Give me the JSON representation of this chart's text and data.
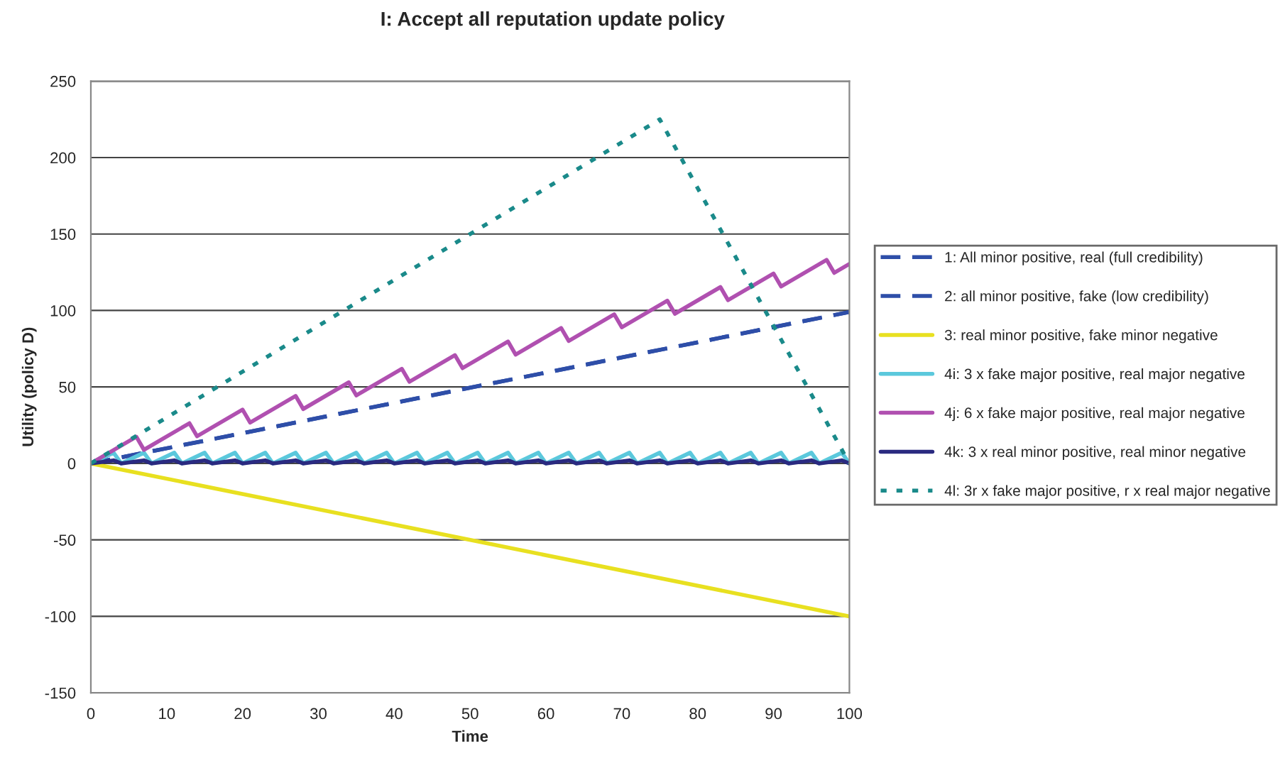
{
  "chart_data": {
    "type": "line",
    "title": "I: Accept all reputation update policy",
    "xlabel": "Time",
    "ylabel": "Utility (policy D)",
    "xlim": [
      0,
      100
    ],
    "xticks": [
      0,
      10,
      20,
      30,
      40,
      50,
      60,
      70,
      80,
      90,
      100
    ],
    "ylim": [
      -150,
      250
    ],
    "yticks": [
      -150,
      -100,
      -50,
      0,
      50,
      100,
      150,
      200,
      250
    ],
    "grid": "y",
    "legend": "right",
    "marker": "none",
    "series": [
      {
        "name": "1: All minor positive, real (full credibility)",
        "color": "#2e4ea8",
        "line_style": "dashed",
        "x": [
          0,
          100
        ],
        "values": [
          0,
          99
        ]
      },
      {
        "name": "2: all minor positive, fake (low credibility)",
        "color": "#2e4ea8",
        "line_style": "dashed",
        "x": [
          0,
          100
        ],
        "values": [
          0,
          99
        ]
      },
      {
        "name": "3: real minor positive, fake minor negative",
        "color": "#e8e020",
        "line_style": "solid",
        "x": [
          0,
          100
        ],
        "values": [
          0,
          -100
        ]
      },
      {
        "name": "4i: 3 x fake major positive, real major negative",
        "color": "#5bc8dc",
        "line_style": "solid",
        "x": [
          0,
          3,
          4,
          7,
          8,
          11,
          12,
          15,
          16,
          19,
          20,
          23,
          24,
          27,
          28,
          31,
          32,
          35,
          36,
          39,
          40,
          43,
          44,
          47,
          48,
          51,
          52,
          55,
          56,
          59,
          60,
          63,
          64,
          67,
          68,
          71,
          72,
          75,
          76,
          79,
          80,
          83,
          84,
          87,
          88,
          91,
          92,
          95,
          96,
          99,
          100
        ],
        "values": [
          0,
          7,
          0,
          7,
          0,
          7,
          0,
          7,
          0,
          7,
          0,
          7,
          0,
          7,
          0,
          7,
          0,
          7,
          0,
          7,
          0,
          7,
          0,
          7,
          0,
          7,
          0,
          7,
          0,
          7,
          0,
          7,
          0,
          7,
          0,
          7,
          0,
          7,
          0,
          7,
          0,
          7,
          0,
          7,
          0,
          7,
          0,
          7,
          0,
          7,
          0
        ]
      },
      {
        "name": "4j: 6 x fake major positive, real major negative",
        "color": "#b050b0",
        "line_style": "solid",
        "x": [
          0,
          6,
          7,
          13,
          14,
          20,
          21,
          27,
          28,
          34,
          35,
          41,
          42,
          48,
          49,
          55,
          56,
          62,
          63,
          69,
          70,
          76,
          77,
          83,
          84,
          90,
          91,
          97,
          98,
          100
        ],
        "values": [
          0,
          17.4,
          8.9,
          26.3,
          17.8,
          35.2,
          26.7,
          44.1,
          35.6,
          53,
          44.5,
          61.9,
          53.4,
          70.8,
          62.3,
          79.7,
          71.2,
          88.6,
          80.1,
          97.5,
          89,
          106.4,
          97.9,
          115.3,
          106.8,
          124.2,
          115.7,
          133.1,
          124.6,
          130.4
        ]
      },
      {
        "name": "4k: 3 x real minor positive, real minor negative",
        "color": "#2a2a80",
        "line_style": "solid",
        "x": [
          0,
          3,
          4,
          7,
          8,
          11,
          12,
          15,
          16,
          19,
          20,
          23,
          24,
          27,
          28,
          31,
          32,
          35,
          36,
          39,
          40,
          43,
          44,
          47,
          48,
          51,
          52,
          55,
          56,
          59,
          60,
          63,
          64,
          67,
          68,
          71,
          72,
          75,
          76,
          79,
          80,
          83,
          84,
          87,
          88,
          91,
          92,
          95,
          96,
          99,
          100
        ],
        "values": [
          0,
          2,
          0,
          2,
          0,
          2,
          0,
          2,
          0,
          2,
          0,
          2,
          0,
          2,
          0,
          2,
          0,
          2,
          0,
          2,
          0,
          2,
          0,
          2,
          0,
          2,
          0,
          2,
          0,
          2,
          0,
          2,
          0,
          2,
          0,
          2,
          0,
          2,
          0,
          2,
          0,
          2,
          0,
          2,
          0,
          2,
          0,
          2,
          0,
          2,
          0
        ]
      },
      {
        "name": "4l: 3r x fake major positive, r x real major negative",
        "color": "#1a8a8a",
        "line_style": "dotted",
        "x": [
          0,
          75,
          100
        ],
        "values": [
          0,
          225,
          0
        ]
      }
    ]
  }
}
